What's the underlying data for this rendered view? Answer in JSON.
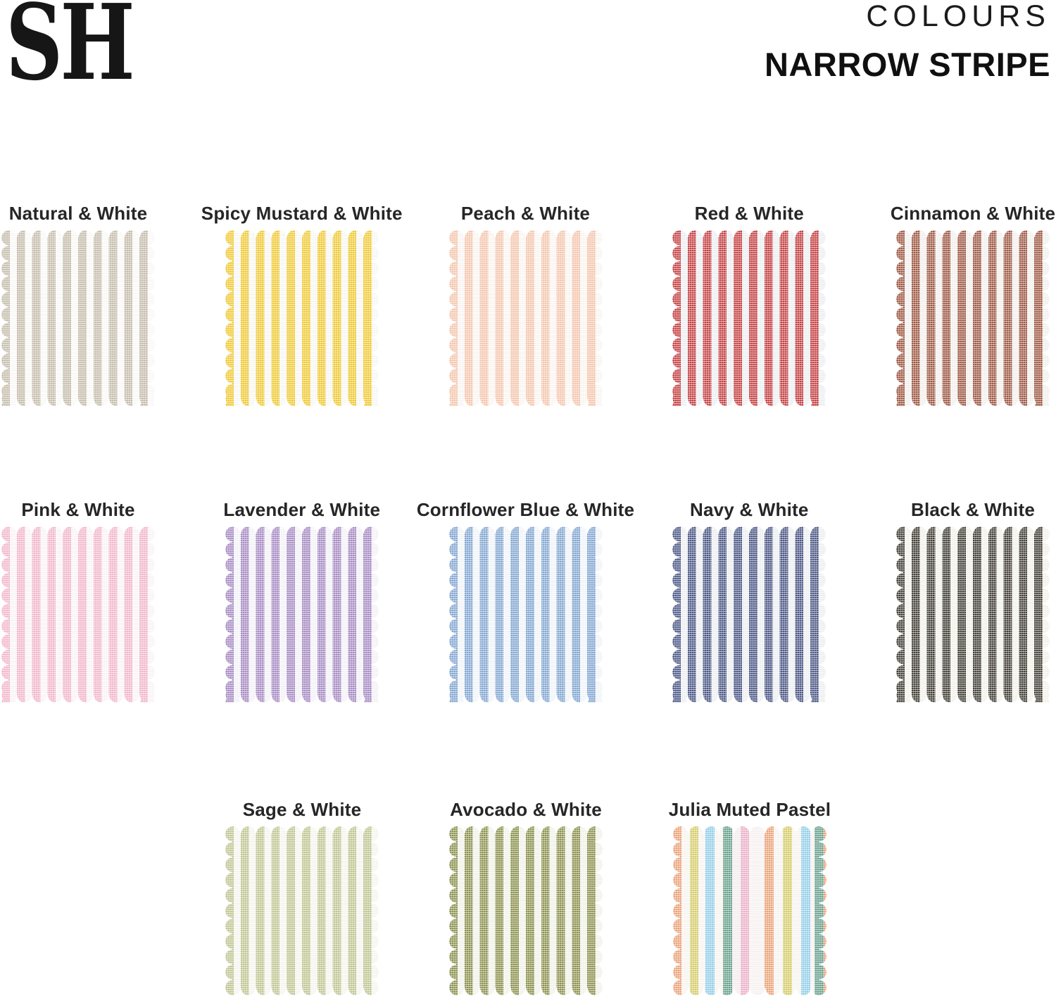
{
  "brand": {
    "logo": "SH"
  },
  "header": {
    "collection": "COLOURS",
    "title": "NARROW STRIPE"
  },
  "swatches": [
    {
      "label": "Natural & White",
      "stripes": [
        [
          "#c8bfae",
          11.8
        ],
        [
          "#fdfcfa",
          10
        ]
      ]
    },
    {
      "label": "Spicy Mustard & White",
      "stripes": [
        [
          "#f2cc35",
          11.8
        ],
        [
          "#fbfaf6",
          10
        ]
      ]
    },
    {
      "label": "Peach & White",
      "stripes": [
        [
          "#f7c9b0",
          11.8
        ],
        [
          "#fdf8f5",
          10
        ]
      ]
    },
    {
      "label": "Red & White",
      "stripes": [
        [
          "#c74144",
          11.8
        ],
        [
          "#f0f1f3",
          10
        ]
      ]
    },
    {
      "label": "Cinnamon & White",
      "stripes": [
        [
          "#a05a46",
          11.8
        ],
        [
          "#f5f3f0",
          10
        ]
      ]
    },
    {
      "label": "Pink & White",
      "stripes": [
        [
          "#f5b9ce",
          11.8
        ],
        [
          "#fdf7fa",
          10
        ]
      ]
    },
    {
      "label": "Lavender & White",
      "stripes": [
        [
          "#a98dc6",
          11.8
        ],
        [
          "#f6f4fa",
          10
        ]
      ]
    },
    {
      "label": "Cornflower Blue & White",
      "stripes": [
        [
          "#84a9d4",
          11.8
        ],
        [
          "#f3f7fb",
          10
        ]
      ]
    },
    {
      "label": "Navy & White",
      "stripes": [
        [
          "#4d5987",
          11.8
        ],
        [
          "#eff1f4",
          10
        ]
      ]
    },
    {
      "label": "Black & White",
      "stripes": [
        [
          "#454239",
          11.8
        ],
        [
          "#f5f4ed",
          10
        ]
      ]
    },
    {
      "label": "Sage & White",
      "stripes": [
        [
          "#c2c994",
          11.8
        ],
        [
          "#f8f8f2",
          10
        ]
      ]
    },
    {
      "label": "Avocado & White",
      "stripes": [
        [
          "#8d9450",
          11.8
        ],
        [
          "#f4f5ec",
          10
        ]
      ]
    },
    {
      "label": "Julia Muted Pastel",
      "stripes": [
        [
          "#eda57b",
          12
        ],
        [
          "#faf7f3",
          12
        ],
        [
          "#d8cf6d",
          12
        ],
        [
          "#faf7f3",
          10
        ],
        [
          "#95d1ec",
          13
        ],
        [
          "#faf7f3",
          12
        ],
        [
          "#69a28f",
          13
        ],
        [
          "#f7eff3",
          12
        ],
        [
          "#efb2ca",
          12
        ],
        [
          "#f8f4f3",
          22
        ],
        [
          "#eda57b",
          13
        ],
        [
          "#faf7f3",
          13
        ],
        [
          "#d8cf6d",
          13
        ],
        [
          "#faf7f3",
          13
        ],
        [
          "#95d1ec",
          13
        ],
        [
          "#f8f4f3",
          6
        ],
        [
          "#69a28f",
          13
        ]
      ]
    }
  ]
}
